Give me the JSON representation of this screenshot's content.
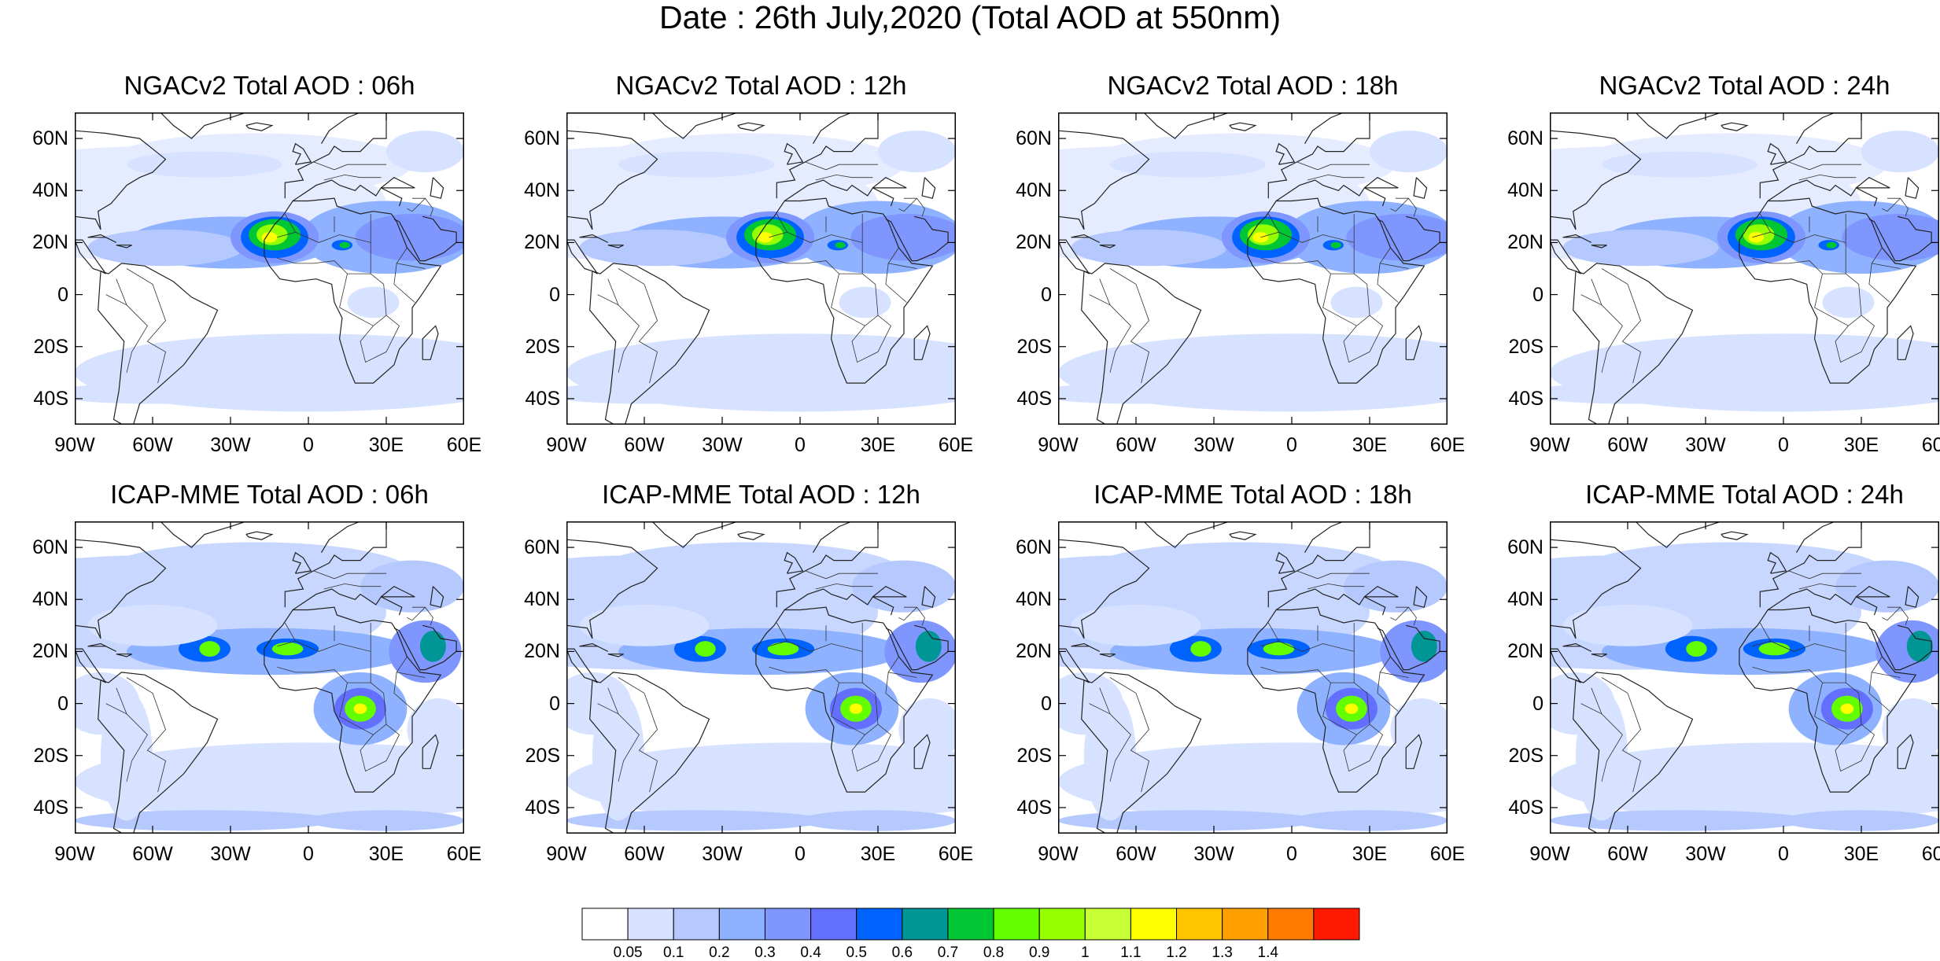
{
  "title": "Date : 26th July,2020 (Total AOD at 550nm)",
  "lat_labels": [
    "60N",
    "40N",
    "20N",
    "0",
    "20S",
    "40S"
  ],
  "lon_labels": [
    "90W",
    "60W",
    "30W",
    "0",
    "30E",
    "60E"
  ],
  "panels": [
    {
      "title": "NGACv2 Total AOD : 06h",
      "model": "ngac"
    },
    {
      "title": "NGACv2 Total AOD : 12h",
      "model": "ngac"
    },
    {
      "title": "NGACv2 Total AOD : 18h",
      "model": "ngac"
    },
    {
      "title": "NGACv2 Total AOD : 24h",
      "model": "ngac"
    },
    {
      "title": "ICAP-MME Total AOD : 06h",
      "model": "icap"
    },
    {
      "title": "ICAP-MME Total AOD : 12h",
      "model": "icap"
    },
    {
      "title": "ICAP-MME Total AOD : 18h",
      "model": "icap"
    },
    {
      "title": "ICAP-MME Total AOD : 24h",
      "model": "icap"
    }
  ],
  "colorbar": {
    "labels": [
      "0.05",
      "0.1",
      "0.2",
      "0.3",
      "0.4",
      "0.5",
      "0.6",
      "0.7",
      "0.8",
      "0.9",
      "1",
      "1.1",
      "1.2",
      "1.3",
      "1.4"
    ],
    "colors": [
      "#ffffff",
      "#d6e2ff",
      "#b5c9ff",
      "#8eb2ff",
      "#7f96ff",
      "#6370ff",
      "#0063ff",
      "#009696",
      "#00c633",
      "#63ff00",
      "#96ff00",
      "#c6ff33",
      "#ffff00",
      "#ffc600",
      "#ffa000",
      "#ff7c00",
      "#ff1900"
    ]
  }
}
